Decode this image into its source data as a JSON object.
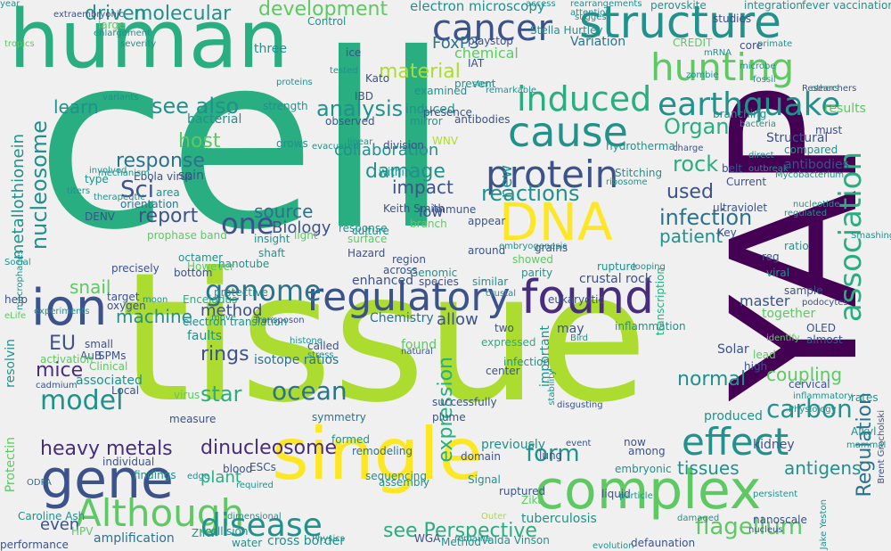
{
  "background": "#f0f0f0",
  "palette": [
    "#440154",
    "#472d7b",
    "#3b528b",
    "#2c728e",
    "#21918c",
    "#28ae80",
    "#5ec962",
    "#addc30",
    "#fde725"
  ],
  "words": [
    "cell",
    "tissue",
    "human",
    "YAP",
    "single",
    "structure",
    "cancer",
    "complex",
    "found",
    "regulatory",
    "gene",
    "Although",
    "DNA",
    "hunting",
    "ion",
    "cause",
    "protein",
    "effect",
    "earthquake",
    "genome",
    "induced",
    "disease",
    "association",
    "model",
    "heavy metals",
    "dinucleosome",
    "see also",
    "flagellum",
    "see Perspective",
    "infection",
    "analysis",
    "nucleosome",
    "Regulation",
    "molecular",
    "development",
    "driven",
    "material",
    "one",
    "carbon",
    "antigens",
    "expression",
    "mice",
    "ocean",
    "star",
    "rock",
    "form",
    "Organ",
    "collaboration",
    "metallothionein",
    "damage",
    "reactions",
    "used",
    "normal",
    "tissues",
    "coupling",
    "impact",
    "patient",
    "source",
    "Biology",
    "report",
    "response",
    "method",
    "machine",
    "host",
    "Sci",
    "rings",
    "learn",
    "snail",
    "EU",
    "electron microscopy",
    "FoxP3",
    "chemical",
    "induced",
    "allow",
    "found",
    "plant",
    "even",
    "amplification",
    "Valda Vinson",
    "water",
    "cross border",
    "ZIKV",
    "tuberculosis",
    "ruptured",
    "inflammation",
    "transcription",
    "master",
    "together",
    "infection",
    "produced",
    "Protectin",
    "resolvin",
    "electron translation",
    "isotope ratios",
    "faults",
    "collision",
    "measure",
    "edge",
    "virus",
    "Keith Smith",
    "Ebola virus",
    "low",
    "new",
    "important",
    "previously",
    "successfully",
    "expressed",
    "center",
    "nanotube",
    "prophase band",
    "orientation",
    "DENV",
    "area",
    "mechanism",
    "response",
    "type",
    "year",
    "extraembryonic",
    "Control",
    "Variation",
    "CREDIT",
    "mRNA",
    "integration",
    "fever",
    "vaccination",
    "perovskite",
    "rearrangements",
    "access",
    "attention",
    "Stella Hurtley",
    "ice",
    "three",
    "Kato",
    "IBD",
    "division",
    "bacterial",
    "large",
    "enlargement",
    "severity",
    "variants",
    "strength",
    "observed",
    "antibodies",
    "WNV",
    "branching",
    "results",
    "bacteria",
    "Structural",
    "compared",
    "Mycobacterium",
    "ribosome",
    "belt",
    "Current",
    "Stitching",
    "hydrothermal",
    "ultraviolet",
    "regulated",
    "Key",
    "ratio",
    "reg",
    "viral",
    "sample",
    "podocytes",
    "OLED",
    "almost",
    "identify",
    "high",
    "Solar",
    "lead",
    "cervical",
    "inflammatory",
    "kidney",
    "rates",
    "Alkyl",
    "Brent Grocholski",
    "Physiology",
    "mammal",
    "Jake Yeston",
    "nucleus",
    "evolution",
    "defaunation",
    "damaged",
    "nanoscale",
    "embryonic",
    "Zika",
    "Signal",
    "domain",
    "lung",
    "event",
    "crustal rock",
    "rupture",
    "species",
    "similar",
    "sequencing",
    "remodeling",
    "formed",
    "plume",
    "symmetry",
    "called",
    "stress",
    "Genomic",
    "crustal",
    "across",
    "region",
    "enhanced",
    "showed",
    "parity",
    "two",
    "may",
    "Bird",
    "eukaryotic",
    "looping",
    "Transposon",
    "histone",
    "move",
    "Chemistry",
    "natural",
    "tested",
    "proteins",
    "within",
    "immune",
    "culture",
    "branch",
    "around",
    "embryogenesis",
    "grains",
    "appear",
    "insight",
    "light",
    "shaft",
    "Hazard",
    "surface",
    "octamer",
    "However",
    "Enceladus",
    "protective",
    "target",
    "oxygen",
    "moon",
    "bottom",
    "precisely",
    "Social",
    "macrophages",
    "help",
    "experiments",
    "eLife",
    "small",
    "AuB",
    "SPMs",
    "activation",
    "associated",
    "cadmium",
    "Local",
    "Clinical",
    "blood",
    "ESCs",
    "required",
    "individual",
    "findings",
    "HPV",
    "performance",
    "Caroline Ash",
    "ODPA",
    "dimensional",
    "liquid",
    "particle",
    "persistent",
    "Method",
    "WGA",
    "Outer",
    "remains",
    "disgusting",
    "assembly",
    "stability",
    "now",
    "among",
    "Physics",
    "tropics",
    "titers",
    "therapeutic",
    "involved",
    "spin",
    "grows",
    "evacuated",
    "linear",
    "mirror",
    "presence",
    "examined",
    "prevent",
    "remarkable",
    "stem",
    "play",
    "stop",
    "IAT",
    "suggest",
    "studies",
    "zombie",
    "core",
    "primate",
    "Researchers",
    "others",
    "fossil",
    "microbe",
    "outbreak",
    "nucleotide",
    "antibodies",
    "charge",
    "must",
    "direct",
    "Smashing"
  ]
}
